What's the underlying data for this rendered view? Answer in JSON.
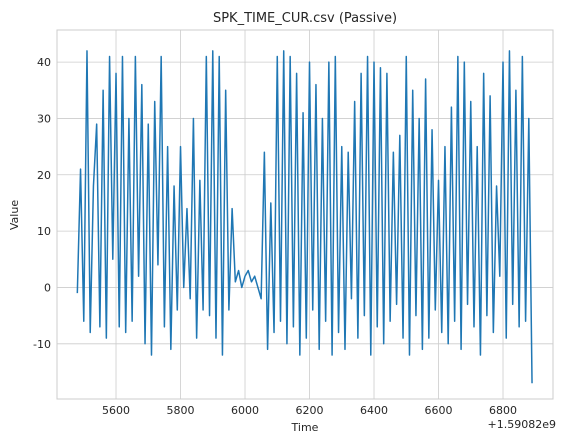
{
  "chart_data": {
    "type": "line",
    "title": "SPK_TIME_CUR.csv (Passive)",
    "x_label": "Time",
    "y_label": "Value",
    "x_offset_label": "+1.59082e9",
    "x": [
      5480,
      5490,
      5500,
      5510,
      5520,
      5530,
      5540,
      5550,
      5560,
      5570,
      5580,
      5590,
      5600,
      5610,
      5620,
      5630,
      5640,
      5650,
      5660,
      5670,
      5680,
      5690,
      5700,
      5710,
      5720,
      5730,
      5740,
      5750,
      5760,
      5770,
      5780,
      5790,
      5800,
      5810,
      5820,
      5830,
      5840,
      5850,
      5860,
      5870,
      5880,
      5890,
      5900,
      5910,
      5920,
      5930,
      5940,
      5950,
      5960,
      5970,
      5980,
      5990,
      6000,
      6010,
      6020,
      6030,
      6040,
      6050,
      6060,
      6070,
      6080,
      6090,
      6100,
      6110,
      6120,
      6130,
      6140,
      6150,
      6160,
      6170,
      6180,
      6190,
      6200,
      6210,
      6220,
      6230,
      6240,
      6250,
      6260,
      6270,
      6280,
      6290,
      6300,
      6310,
      6320,
      6330,
      6340,
      6350,
      6360,
      6370,
      6380,
      6390,
      6400,
      6410,
      6420,
      6430,
      6440,
      6450,
      6460,
      6470,
      6480,
      6490,
      6500,
      6510,
      6520,
      6530,
      6540,
      6550,
      6560,
      6570,
      6580,
      6590,
      6600,
      6610,
      6620,
      6630,
      6640,
      6650,
      6660,
      6670,
      6680,
      6690,
      6700,
      6710,
      6720,
      6730,
      6740,
      6750,
      6760,
      6770,
      6780,
      6790,
      6800,
      6810,
      6820,
      6830,
      6840,
      6850,
      6860,
      6870,
      6880,
      6890
    ],
    "series": [
      {
        "name": "Value",
        "color": "#1f77b4",
        "values": [
          -1,
          21,
          -6,
          42,
          -8,
          18,
          29,
          -7,
          35,
          -9,
          41,
          5,
          38,
          -7,
          41,
          -8,
          30,
          -6,
          41,
          2,
          36,
          -10,
          29,
          -12,
          33,
          4,
          41,
          -7,
          25,
          -11,
          18,
          -4,
          25,
          0,
          14,
          -2,
          30,
          -9,
          19,
          -4,
          41,
          -5,
          42,
          -9,
          41,
          -12,
          35,
          -4,
          14,
          1,
          3,
          0,
          2,
          3,
          1,
          2,
          0,
          -2,
          24,
          -11,
          15,
          -8,
          41,
          -6,
          42,
          -10,
          41,
          -7,
          38,
          -12,
          31,
          -9,
          40,
          -4,
          36,
          -11,
          30,
          -6,
          40,
          -12,
          41,
          -8,
          25,
          -11,
          24,
          -2,
          33,
          -9,
          38,
          -5,
          41,
          -12,
          40,
          -7,
          39,
          -10,
          38,
          -6,
          24,
          -3,
          27,
          -9,
          41,
          -12,
          35,
          -5,
          30,
          -11,
          37,
          -9,
          28,
          -4,
          19,
          -8,
          25,
          -10,
          32,
          -6,
          41,
          -11,
          40,
          -3,
          33,
          -7,
          25,
          -12,
          38,
          -5,
          34,
          -8,
          18,
          2,
          40,
          -9,
          42,
          -3,
          35,
          -7,
          41,
          -6,
          30,
          -17
        ]
      }
    ],
    "xlim": [
      5417,
      6955
    ],
    "ylim": [
      -19.8,
      45.7
    ],
    "xticks": [
      5600,
      5800,
      6000,
      6200,
      6400,
      6600,
      6800
    ],
    "yticks": [
      -10,
      0,
      10,
      20,
      30,
      40
    ],
    "grid": true
  }
}
